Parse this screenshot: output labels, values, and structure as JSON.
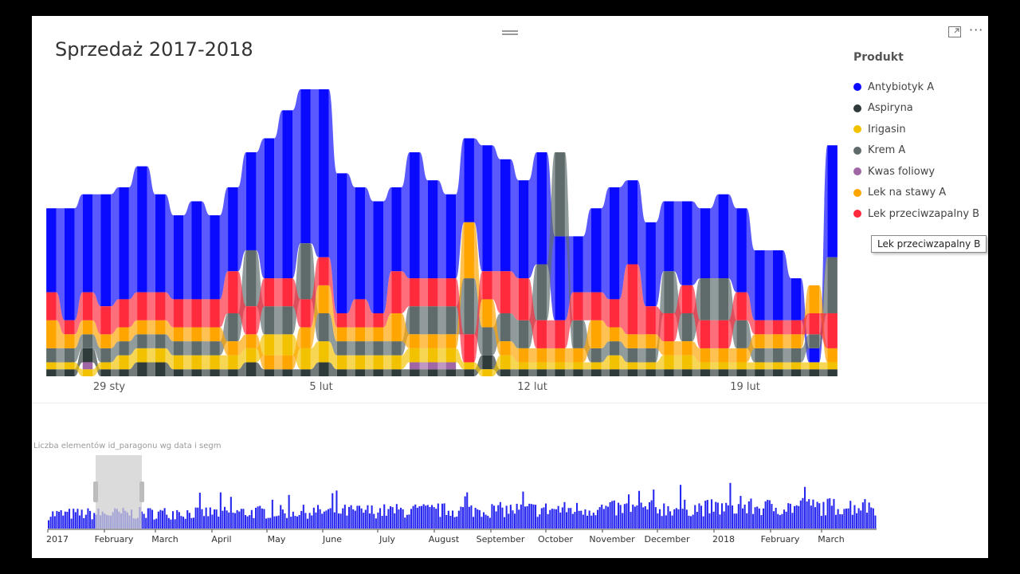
{
  "visual": {
    "title": "Sprzedaż 2017-2018",
    "more_label": "···"
  },
  "legend": {
    "title": "Produkt",
    "items": [
      {
        "label": "Antybiotyk A",
        "color": "#0a0aff"
      },
      {
        "label": "Aspiryna",
        "color": "#2f3b3b"
      },
      {
        "label": "Irigasin",
        "color": "#f2c200"
      },
      {
        "label": "Krem A",
        "color": "#5f6b6b"
      },
      {
        "label": "Kwas foliowy",
        "color": "#a066a6"
      },
      {
        "label": "Lek na stawy A",
        "color": "#ffa500"
      },
      {
        "label": "Lek przeciwzapalny B",
        "color": "#ff2a3c"
      }
    ]
  },
  "tooltip": "Lek przeciwzapalny B",
  "chart_data": [
    {
      "type": "area",
      "subtype": "ribbon",
      "title": "Sprzedaż 2017-2018",
      "x_tick_labels": [
        "29 sty",
        "5 lut",
        "12 lut",
        "19 lut"
      ],
      "legend_title": "Produkt",
      "legend_position": "right",
      "category_count": 44,
      "series": [
        {
          "name": "Antybiotyk A",
          "values": [
            6,
            8,
            7,
            8,
            8,
            9,
            7,
            6,
            7,
            6,
            6,
            7,
            10,
            12,
            11,
            12,
            10,
            8,
            8,
            6,
            9,
            7,
            6,
            6,
            9,
            8,
            7,
            8,
            6,
            4,
            6,
            8,
            6,
            6,
            5,
            6,
            5,
            6,
            6,
            5,
            5,
            3,
            1,
            8
          ]
        },
        {
          "name": "Aspiryna",
          "values": [
            0.5,
            0.5,
            1,
            0.5,
            0.5,
            1,
            1,
            0.5,
            0.5,
            0.5,
            0.5,
            1,
            0.5,
            0.5,
            0.5,
            1,
            0.5,
            0.5,
            0.5,
            0.5,
            0.5,
            0.5,
            0.5,
            0.5,
            1,
            0.5,
            0.5,
            0.5,
            0.5,
            0.5,
            0.5,
            0.5,
            0.5,
            0.5,
            0.5,
            0.5,
            0.5,
            0.5,
            0.5,
            0.5,
            0.5,
            0.5,
            0.5,
            0.5
          ]
        },
        {
          "name": "Irigasin",
          "values": [
            0.5,
            0.5,
            0.5,
            0.5,
            1,
            1,
            1,
            1,
            1,
            1,
            1,
            1,
            1.5,
            1.5,
            1.5,
            1.5,
            1,
            1,
            1,
            1,
            1,
            1,
            1,
            0.5,
            0.5,
            1,
            0.5,
            0.5,
            0.5,
            0.5,
            0.5,
            1,
            0.5,
            0.5,
            1,
            1,
            0.5,
            0.5,
            0.5,
            0.5,
            0.5,
            0.5,
            0.5,
            0.5
          ]
        },
        {
          "name": "Krem A",
          "values": [
            1,
            1,
            1,
            1,
            1,
            1,
            1,
            1,
            1,
            1,
            2,
            4,
            2,
            2,
            4,
            2,
            1,
            1,
            1,
            1,
            2,
            2,
            2,
            4,
            2,
            2,
            2,
            4,
            6,
            2,
            1,
            1,
            1,
            1,
            3,
            2,
            3,
            3,
            2,
            1,
            1,
            1,
            1,
            4
          ]
        },
        {
          "name": "Kwas foliowy",
          "values": [
            0,
            0,
            0.5,
            0,
            0,
            0,
            0,
            0,
            0,
            0,
            0,
            0,
            0,
            0,
            0,
            0,
            0,
            0,
            0,
            0,
            0.5,
            0.5,
            0.5,
            0,
            0,
            0,
            0,
            0,
            0,
            0,
            0,
            0,
            0,
            0,
            0,
            0,
            0,
            0,
            0,
            0,
            0,
            0,
            0,
            0
          ]
        },
        {
          "name": "Lek na stawy A",
          "values": [
            2,
            1,
            1,
            1,
            1,
            1,
            1,
            1,
            1,
            1,
            1,
            1,
            1,
            1,
            1.5,
            2,
            1,
            1,
            1,
            2,
            1,
            1,
            1,
            4,
            2,
            1,
            1,
            1,
            1,
            1,
            2,
            1,
            1,
            1,
            1,
            1,
            1,
            1,
            1,
            1,
            1,
            1,
            2,
            1
          ]
        },
        {
          "name": "Lek przeciwzapalny B",
          "values": [
            2,
            1,
            2,
            2,
            2,
            2,
            2,
            2,
            2,
            2,
            3,
            2,
            2,
            2,
            2,
            2,
            1,
            2,
            1,
            3,
            2,
            2,
            2,
            2,
            2,
            3,
            3,
            2,
            2,
            2,
            2,
            2,
            5,
            2,
            2,
            2,
            2,
            2,
            2,
            1,
            1,
            1,
            1.5,
            2.5
          ]
        }
      ]
    },
    {
      "type": "bar",
      "title": "Liczba elementów id_paragonu wg data i segm",
      "x_tick_labels": [
        "2017",
        "February",
        "March",
        "April",
        "May",
        "June",
        "July",
        "August",
        "September",
        "October",
        "November",
        "December",
        "2018",
        "February",
        "March"
      ],
      "color": "#2727f0",
      "y_trend": {
        "start": 18,
        "end": 28,
        "peak": 55
      },
      "selection": {
        "from": "February",
        "to": "March"
      }
    }
  ]
}
